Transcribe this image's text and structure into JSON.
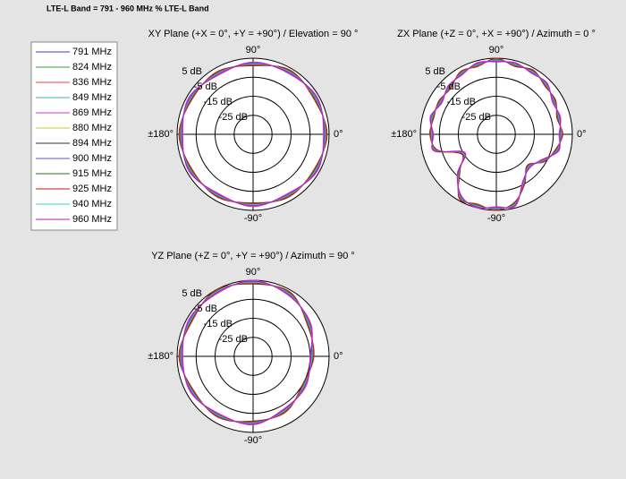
{
  "title": "LTE-L Band = 791 - 960 MHz % LTE-L Band",
  "chart_data": [
    {
      "type": "polar",
      "title": "XY Plane (+X = 0°, +Y = +90°) / Elevation = 90 °",
      "theta": [
        0,
        30,
        60,
        90,
        120,
        150,
        180,
        210,
        240,
        270,
        300,
        330
      ],
      "rlim": [
        -35,
        5
      ],
      "rticks": [
        {
          "value": 5,
          "label": "5 dB"
        },
        {
          "value": -5,
          "label": "-5 dB"
        },
        {
          "value": -15,
          "label": "-15 dB"
        },
        {
          "value": -25,
          "label": "-25 dB"
        }
      ],
      "thetaticks": [
        {
          "value": 90,
          "label": "90°"
        },
        {
          "value": 0,
          "label": "0°"
        },
        {
          "value": -90,
          "label": "-90°"
        },
        {
          "value": 180,
          "label": "±180°"
        }
      ],
      "series": [
        {
          "name": "791 MHz",
          "color": "#3a3ad0",
          "values": [
            3,
            3,
            3,
            2,
            2,
            3,
            3,
            3,
            2,
            2,
            2,
            3
          ]
        },
        {
          "name": "824 MHz",
          "color": "#3c9a3c",
          "values": [
            2.5,
            3.5,
            2.5,
            2.5,
            1.5,
            3.5,
            2.5,
            3.5,
            1.5,
            2.5,
            1.5,
            3.5
          ]
        },
        {
          "name": "836 MHz",
          "color": "#ff3a3a",
          "values": [
            3.5,
            2.5,
            3.5,
            1.5,
            2.5,
            2.5,
            3.5,
            2.5,
            2.5,
            1.5,
            2.5,
            2.5
          ]
        },
        {
          "name": "849 MHz",
          "color": "#3ab0b0",
          "values": [
            3,
            3,
            3,
            2,
            2,
            3,
            3,
            3,
            2,
            2,
            2,
            3
          ]
        },
        {
          "name": "869 MHz",
          "color": "#d23ad2",
          "values": [
            2,
            4,
            2,
            3,
            1,
            4,
            2,
            4,
            1,
            3,
            1,
            4
          ]
        },
        {
          "name": "880 MHz",
          "color": "#c8c832",
          "values": [
            3.5,
            2.5,
            3.5,
            1.5,
            2.5,
            2.5,
            3.5,
            2.5,
            2.5,
            1.5,
            2.5,
            2.5
          ]
        },
        {
          "name": "894 MHz",
          "color": "#303030",
          "values": [
            3,
            3,
            3,
            2,
            2,
            3,
            3,
            3,
            2,
            2,
            2,
            3
          ]
        },
        {
          "name": "900 MHz",
          "color": "#5a5ad8",
          "values": [
            2.5,
            3.5,
            2.5,
            2.5,
            1.5,
            3.5,
            2.5,
            3.5,
            1.5,
            2.5,
            1.5,
            3.5
          ]
        },
        {
          "name": "915 MHz",
          "color": "#2e6e2e",
          "values": [
            3.5,
            2.5,
            3.5,
            1.5,
            2.5,
            2.5,
            3.5,
            2.5,
            2.5,
            1.5,
            2.5,
            2.5
          ]
        },
        {
          "name": "925 MHz",
          "color": "#d01010",
          "values": [
            4,
            2,
            4,
            1,
            3,
            2,
            4,
            2,
            3,
            1,
            3,
            2
          ]
        },
        {
          "name": "940 MHz",
          "color": "#30d0d0",
          "values": [
            3,
            3,
            3,
            2,
            2,
            3,
            3,
            3,
            2,
            2,
            2,
            3
          ]
        },
        {
          "name": "960 MHz",
          "color": "#c010c0",
          "values": [
            2.5,
            3.5,
            2.5,
            2.5,
            1.5,
            3.5,
            2.5,
            3.5,
            1.5,
            2.5,
            1.5,
            3.5
          ]
        }
      ]
    },
    {
      "type": "polar",
      "title": "ZX Plane (+Z = 0°, +X = +90°) / Azimuth = 0 °",
      "theta": [
        0,
        15,
        30,
        45,
        60,
        75,
        90,
        105,
        120,
        135,
        150,
        165,
        180,
        195,
        210,
        225,
        240,
        255,
        270,
        285,
        300,
        315,
        330,
        345
      ],
      "rlim": [
        -35,
        5
      ],
      "rticks": [
        {
          "value": 5,
          "label": "5 dB"
        },
        {
          "value": -5,
          "label": "-5 dB"
        },
        {
          "value": -15,
          "label": "-15 dB"
        },
        {
          "value": -25,
          "label": "-25 dB"
        }
      ],
      "thetaticks": [
        {
          "value": 90,
          "label": "90°"
        },
        {
          "value": 0,
          "label": "0°"
        },
        {
          "value": -90,
          "label": "-90°"
        },
        {
          "value": 180,
          "label": "±180°"
        }
      ],
      "series": [
        {
          "values": [
            -1,
            -1,
            0,
            2,
            3,
            3,
            4,
            3,
            2,
            0,
            -1,
            0,
            -1,
            -2,
            -15,
            -7,
            3,
            4,
            4,
            3,
            -6,
            -11,
            -7,
            -2
          ]
        },
        {
          "values": [
            -1.5,
            -0.5,
            -0.5,
            2.5,
            2.5,
            3.5,
            3.5,
            3.5,
            1.5,
            0.5,
            -1.5,
            0.5,
            -1.5,
            -1.5,
            -15.5,
            -6.5,
            2.5,
            4.5,
            3.5,
            3.5,
            -6.5,
            -10.5,
            -7.5,
            -1.5
          ]
        },
        {
          "values": [
            -0.5,
            -1.5,
            0.5,
            1.5,
            3.5,
            2.5,
            4.5,
            2.5,
            2.5,
            -0.5,
            -0.5,
            -0.5,
            -0.5,
            -2.5,
            -14.5,
            -7.5,
            3.5,
            3.5,
            4.5,
            2.5,
            -5.5,
            -11.5,
            -6.5,
            -2.5
          ]
        },
        {
          "values": [
            -1,
            -1,
            0,
            2,
            3,
            3,
            4,
            3,
            2,
            0,
            -1,
            0,
            -1,
            -2,
            -15,
            -7,
            3,
            4,
            4,
            3,
            -6,
            -11,
            -7,
            -2
          ]
        },
        {
          "values": [
            -2,
            0,
            -1,
            3,
            2,
            4,
            3,
            4,
            1,
            1,
            -2,
            1,
            -2,
            -1,
            -16,
            -6,
            2,
            5,
            3,
            4,
            -7,
            -10,
            -8,
            -1
          ]
        },
        {
          "values": [
            -0.5,
            -1.5,
            0.5,
            1.5,
            3.5,
            2.5,
            4.5,
            2.5,
            2.5,
            -0.5,
            -0.5,
            -0.5,
            -0.5,
            -2.5,
            -14.5,
            -7.5,
            3.5,
            3.5,
            4.5,
            2.5,
            -5.5,
            -11.5,
            -6.5,
            -2.5
          ]
        },
        {
          "values": [
            -1,
            -1,
            0,
            2,
            3,
            3,
            4,
            3,
            2,
            0,
            -1,
            0,
            -1,
            -2,
            -15,
            -7,
            3,
            4,
            4,
            3,
            -6,
            -11,
            -7,
            -2
          ]
        },
        {
          "values": [
            -1.5,
            -0.5,
            -0.5,
            2.5,
            2.5,
            3.5,
            3.5,
            3.5,
            1.5,
            0.5,
            -1.5,
            0.5,
            -1.5,
            -1.5,
            -15.5,
            -6.5,
            2.5,
            4.5,
            3.5,
            3.5,
            -6.5,
            -10.5,
            -7.5,
            -1.5
          ]
        },
        {
          "values": [
            -0.5,
            -1.5,
            0.5,
            1.5,
            3.5,
            2.5,
            4.5,
            2.5,
            2.5,
            -0.5,
            -0.5,
            -0.5,
            -0.5,
            -2.5,
            -14.5,
            -7.5,
            3.5,
            3.5,
            4.5,
            2.5,
            -5.5,
            -11.5,
            -6.5,
            -2.5
          ]
        },
        {
          "values": [
            0,
            -2,
            1,
            1,
            4,
            2,
            5,
            2,
            3,
            -1,
            0,
            -1,
            0,
            -3,
            -14,
            -8,
            4,
            3,
            5,
            2,
            -5,
            -12,
            -6,
            -3
          ]
        },
        {
          "values": [
            -1,
            -1,
            0,
            2,
            3,
            3,
            4,
            3,
            2,
            0,
            -1,
            0,
            -1,
            -2,
            -15,
            -7,
            3,
            4,
            4,
            3,
            -6,
            -11,
            -7,
            -2
          ]
        },
        {
          "values": [
            -1.5,
            -0.5,
            -0.5,
            2.5,
            2.5,
            3.5,
            3.5,
            3.5,
            1.5,
            0.5,
            -1.5,
            0.5,
            -1.5,
            -1.5,
            -15.5,
            -6.5,
            2.5,
            4.5,
            3.5,
            3.5,
            -6.5,
            -10.5,
            -7.5,
            -1.5
          ]
        }
      ]
    },
    {
      "type": "polar",
      "title": "YZ Plane (+Z = 0°, +Y = +90°) / Azimuth = 90 °",
      "theta": [
        0,
        30,
        60,
        90,
        120,
        150,
        180,
        210,
        240,
        270,
        300,
        330
      ],
      "rlim": [
        -35,
        5
      ],
      "rticks": [
        {
          "value": 5,
          "label": "5 dB"
        },
        {
          "value": -5,
          "label": "-5 dB"
        },
        {
          "value": -15,
          "label": "-15 dB"
        },
        {
          "value": -25,
          "label": "-25 dB"
        }
      ],
      "thetaticks": [
        {
          "value": 90,
          "label": "90°"
        },
        {
          "value": 0,
          "label": "0°"
        },
        {
          "value": -90,
          "label": "-90°"
        },
        {
          "value": 180,
          "label": "±180°"
        }
      ],
      "series": [
        {
          "values": [
            -4,
            -1,
            3,
            4,
            4,
            3,
            3,
            2,
            1,
            0,
            -2,
            -4
          ]
        },
        {
          "values": [
            -4.5,
            -0.5,
            2.5,
            4.5,
            3.5,
            3.5,
            2.5,
            2.5,
            0.5,
            0.5,
            -2.5,
            -3.5
          ]
        },
        {
          "values": [
            -3.5,
            -1.5,
            3.5,
            3.5,
            4.5,
            2.5,
            3.5,
            1.5,
            1.5,
            -0.5,
            -1.5,
            -4.5
          ]
        },
        {
          "values": [
            -4,
            -1,
            3,
            4,
            4,
            3,
            3,
            2,
            1,
            0,
            -2,
            -4
          ]
        },
        {
          "values": [
            -5,
            0,
            2,
            5,
            3,
            4,
            2,
            3,
            0,
            1,
            -3,
            -3
          ]
        },
        {
          "values": [
            -3.5,
            -1.5,
            3.5,
            3.5,
            4.5,
            2.5,
            3.5,
            1.5,
            1.5,
            -0.5,
            -1.5,
            -4.5
          ]
        },
        {
          "values": [
            -4,
            -1,
            3,
            4,
            4,
            3,
            3,
            2,
            1,
            0,
            -2,
            -4
          ]
        },
        {
          "values": [
            -4.5,
            -0.5,
            2.5,
            4.5,
            3.5,
            3.5,
            2.5,
            2.5,
            0.5,
            0.5,
            -2.5,
            -3.5
          ]
        },
        {
          "values": [
            -3.5,
            -1.5,
            3.5,
            3.5,
            4.5,
            2.5,
            3.5,
            1.5,
            1.5,
            -0.5,
            -1.5,
            -4.5
          ]
        },
        {
          "values": [
            -3,
            -2,
            4,
            3,
            5,
            2,
            4,
            1,
            2,
            -1,
            -1,
            -5
          ]
        },
        {
          "values": [
            -4,
            -1,
            3,
            4,
            4,
            3,
            3,
            2,
            1,
            0,
            -2,
            -4
          ]
        },
        {
          "values": [
            -4.5,
            -0.5,
            2.5,
            4.5,
            3.5,
            3.5,
            2.5,
            2.5,
            0.5,
            0.5,
            -2.5,
            -3.5
          ]
        }
      ]
    }
  ]
}
